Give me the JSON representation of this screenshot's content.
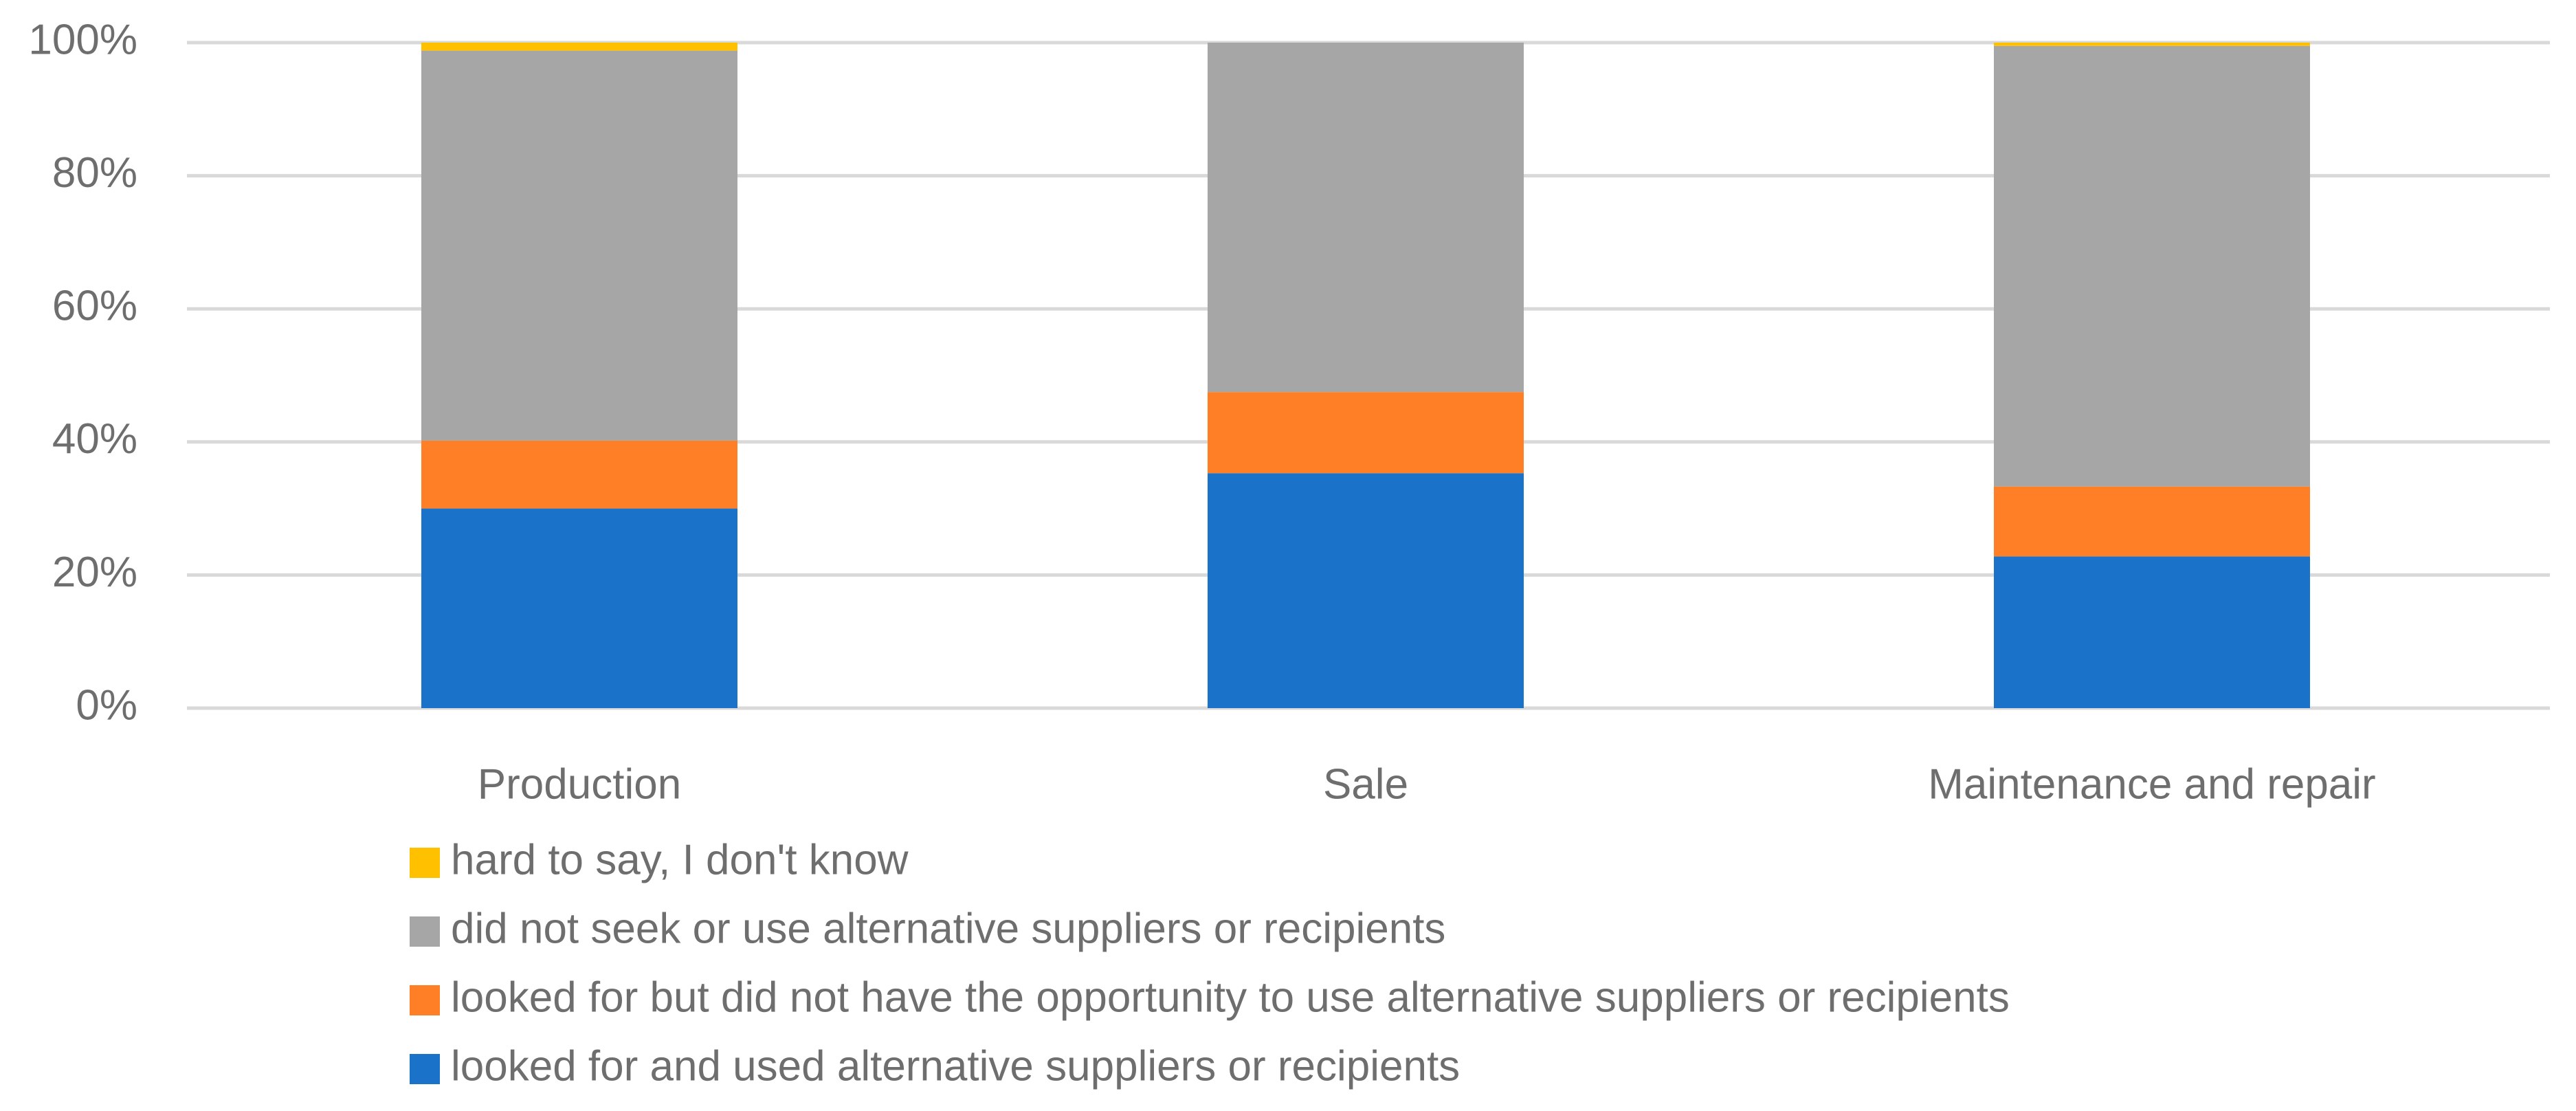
{
  "chart_data": {
    "type": "bar",
    "stacked": true,
    "percent_stacked": true,
    "categories": [
      "Production",
      "Sale",
      "Maintenance and repair"
    ],
    "series": [
      {
        "name": "looked for and used alternative suppliers or recipients",
        "color": "#1a73c8",
        "values": [
          30,
          35.3,
          22.8
        ]
      },
      {
        "name": "looked for but did not have the opportunity to use alternative suppliers or recipients",
        "color": "#fe7f26",
        "values": [
          10.2,
          12.2,
          10.5
        ]
      },
      {
        "name": "did not seek or use alternative suppliers or recipients",
        "color": "#a6a6a6",
        "values": [
          58.6,
          52.5,
          66.2
        ]
      },
      {
        "name": "hard to say, I don't know",
        "color": "#ffc000",
        "values": [
          1.2,
          0,
          0.5
        ]
      }
    ],
    "yticks": [
      "0%",
      "20%",
      "40%",
      "60%",
      "80%",
      "100%"
    ],
    "ylim": [
      0,
      100
    ],
    "grid": true,
    "legend_position": "bottom",
    "legend_order": [
      "hard to say, I don't know",
      "did not seek or use alternative suppliers or recipients",
      "looked for but did not have the opportunity to use alternative suppliers or recipients",
      "looked for and used alternative suppliers or recipients"
    ],
    "title": "",
    "xlabel": "",
    "ylabel": ""
  }
}
